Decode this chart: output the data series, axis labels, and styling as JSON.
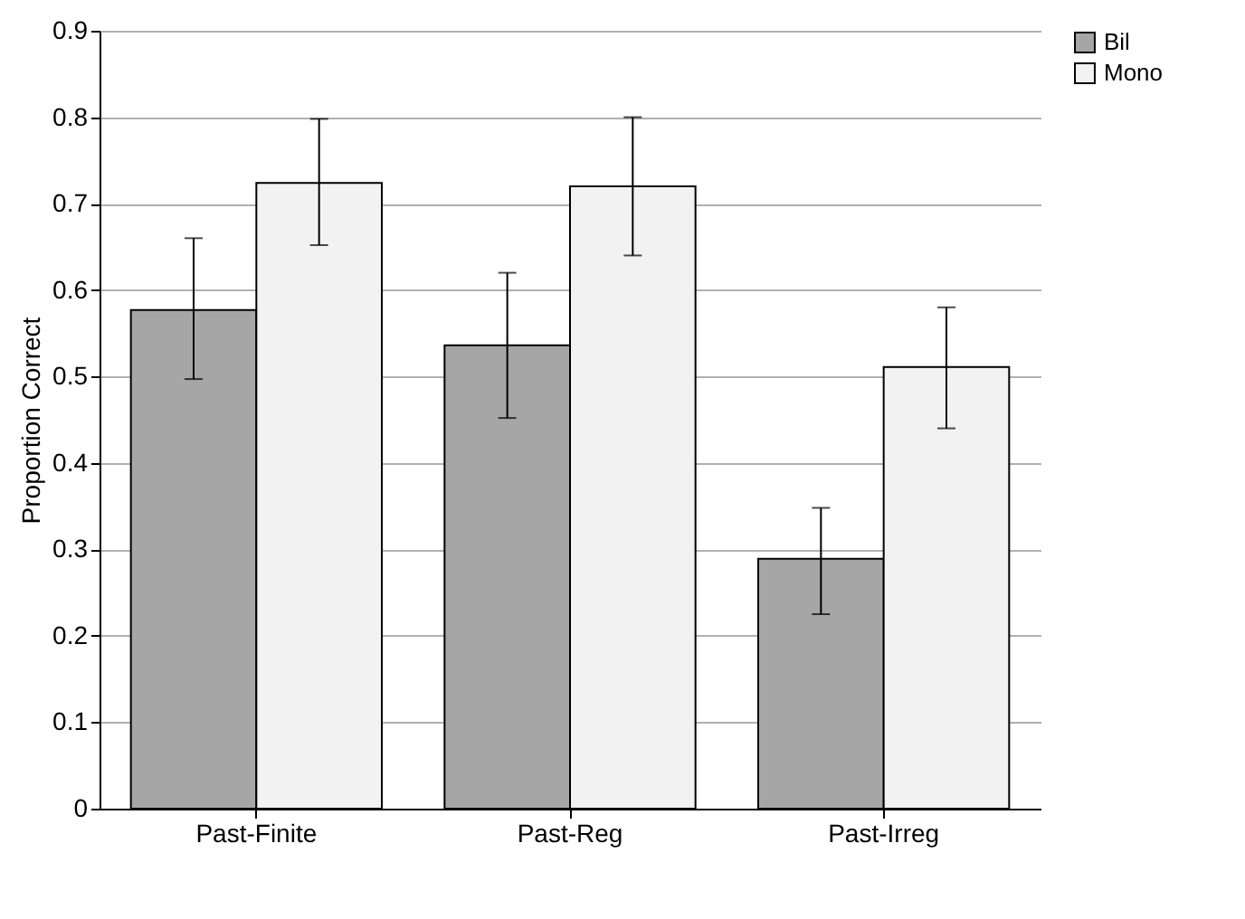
{
  "chart_data": {
    "type": "bar",
    "ylabel": "Proportion Correct",
    "categories": [
      "Past-Finite",
      "Past-Reg",
      "Past-Irreg"
    ],
    "series": [
      {
        "name": "Bil",
        "color": "#a6a6a6",
        "values": [
          0.577,
          0.536,
          0.289
        ],
        "errors": [
          [
            0.497,
            0.66
          ],
          [
            0.452,
            0.62
          ],
          [
            0.225,
            0.348
          ]
        ]
      },
      {
        "name": "Mono",
        "color": "#f2f2f2",
        "values": [
          0.724,
          0.72,
          0.511
        ],
        "errors": [
          [
            0.652,
            0.798
          ],
          [
            0.64,
            0.8
          ],
          [
            0.44,
            0.58
          ]
        ]
      }
    ],
    "ylim": [
      0,
      0.9
    ],
    "yticks": [
      0,
      0.1,
      0.2,
      0.3,
      0.4,
      0.5,
      0.6,
      0.7,
      0.8,
      0.9
    ],
    "grid": "y",
    "legend": "right"
  }
}
